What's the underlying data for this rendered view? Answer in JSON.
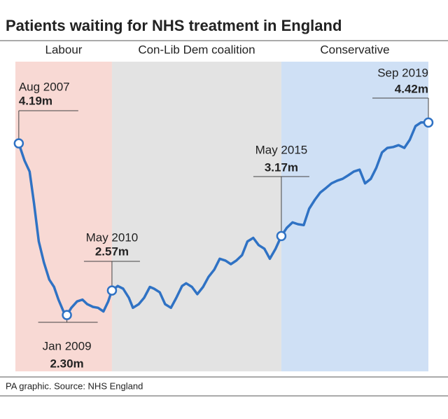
{
  "chart_data": {
    "type": "line",
    "title": "Patients waiting for NHS treatment in England",
    "source": "PA graphic. Source: NHS England",
    "periods": [
      {
        "name": "Labour",
        "start": 2007.48,
        "end": 2010.33,
        "color": "#f8d9d4"
      },
      {
        "name": "Con-Lib Dem coalition",
        "start": 2010.33,
        "end": 2015.33,
        "color": "#e3e3e3"
      },
      {
        "name": "Conservative",
        "start": 2015.33,
        "end": 2019.67,
        "color": "#cfe0f5"
      }
    ],
    "xlim": [
      2007.48,
      2019.67
    ],
    "ylim": [
      1.68,
      5.09
    ],
    "series": [
      {
        "name": "Patients waiting",
        "color": "#2f72c4",
        "x": [
          2007.58,
          2007.75,
          2007.9,
          2008.03,
          2008.17,
          2008.32,
          2008.48,
          2008.62,
          2008.75,
          2008.9,
          2009.0,
          2009.13,
          2009.3,
          2009.46,
          2009.6,
          2009.77,
          2009.92,
          2010.08,
          2010.22,
          2010.33,
          2010.5,
          2010.66,
          2010.83,
          2010.95,
          2011.12,
          2011.28,
          2011.45,
          2011.57,
          2011.74,
          2011.9,
          2012.07,
          2012.23,
          2012.4,
          2012.52,
          2012.69,
          2012.85,
          2013.02,
          2013.18,
          2013.35,
          2013.51,
          2013.68,
          2013.84,
          2014.0,
          2014.17,
          2014.33,
          2014.5,
          2014.66,
          2014.83,
          2014.99,
          2015.16,
          2015.33,
          2015.49,
          2015.66,
          2015.82,
          2015.99,
          2016.15,
          2016.32,
          2016.48,
          2016.65,
          2016.81,
          2016.98,
          2017.14,
          2017.31,
          2017.47,
          2017.64,
          2017.8,
          2017.97,
          2018.13,
          2018.3,
          2018.46,
          2018.63,
          2018.79,
          2018.96,
          2019.12,
          2019.29,
          2019.45,
          2019.67
        ],
        "values": [
          4.19,
          4.0,
          3.88,
          3.53,
          3.11,
          2.88,
          2.69,
          2.61,
          2.47,
          2.34,
          2.3,
          2.38,
          2.45,
          2.47,
          2.42,
          2.39,
          2.38,
          2.34,
          2.45,
          2.57,
          2.62,
          2.59,
          2.49,
          2.38,
          2.42,
          2.49,
          2.61,
          2.59,
          2.55,
          2.42,
          2.38,
          2.49,
          2.62,
          2.65,
          2.61,
          2.53,
          2.61,
          2.72,
          2.8,
          2.92,
          2.9,
          2.86,
          2.9,
          2.96,
          3.11,
          3.15,
          3.07,
          3.03,
          2.92,
          3.03,
          3.17,
          3.26,
          3.32,
          3.3,
          3.29,
          3.47,
          3.57,
          3.65,
          3.7,
          3.75,
          3.78,
          3.8,
          3.84,
          3.88,
          3.9,
          3.75,
          3.8,
          3.92,
          4.09,
          4.14,
          4.15,
          4.17,
          4.14,
          4.23,
          4.38,
          4.42,
          4.42
        ]
      }
    ],
    "annotations": [
      {
        "date": "Aug 2007",
        "value": 4.19,
        "label": "4.19m",
        "x": 2007.58
      },
      {
        "date": "Jan 2009",
        "value": 2.3,
        "label": "2.30m",
        "x": 2009.0
      },
      {
        "date": "May 2010",
        "value": 2.57,
        "label": "2.57m",
        "x": 2010.33
      },
      {
        "date": "May 2015",
        "value": 3.17,
        "label": "3.17m",
        "x": 2015.33
      },
      {
        "date": "Sep 2019",
        "value": 4.42,
        "label": "4.42m",
        "x": 2019.67
      }
    ]
  }
}
